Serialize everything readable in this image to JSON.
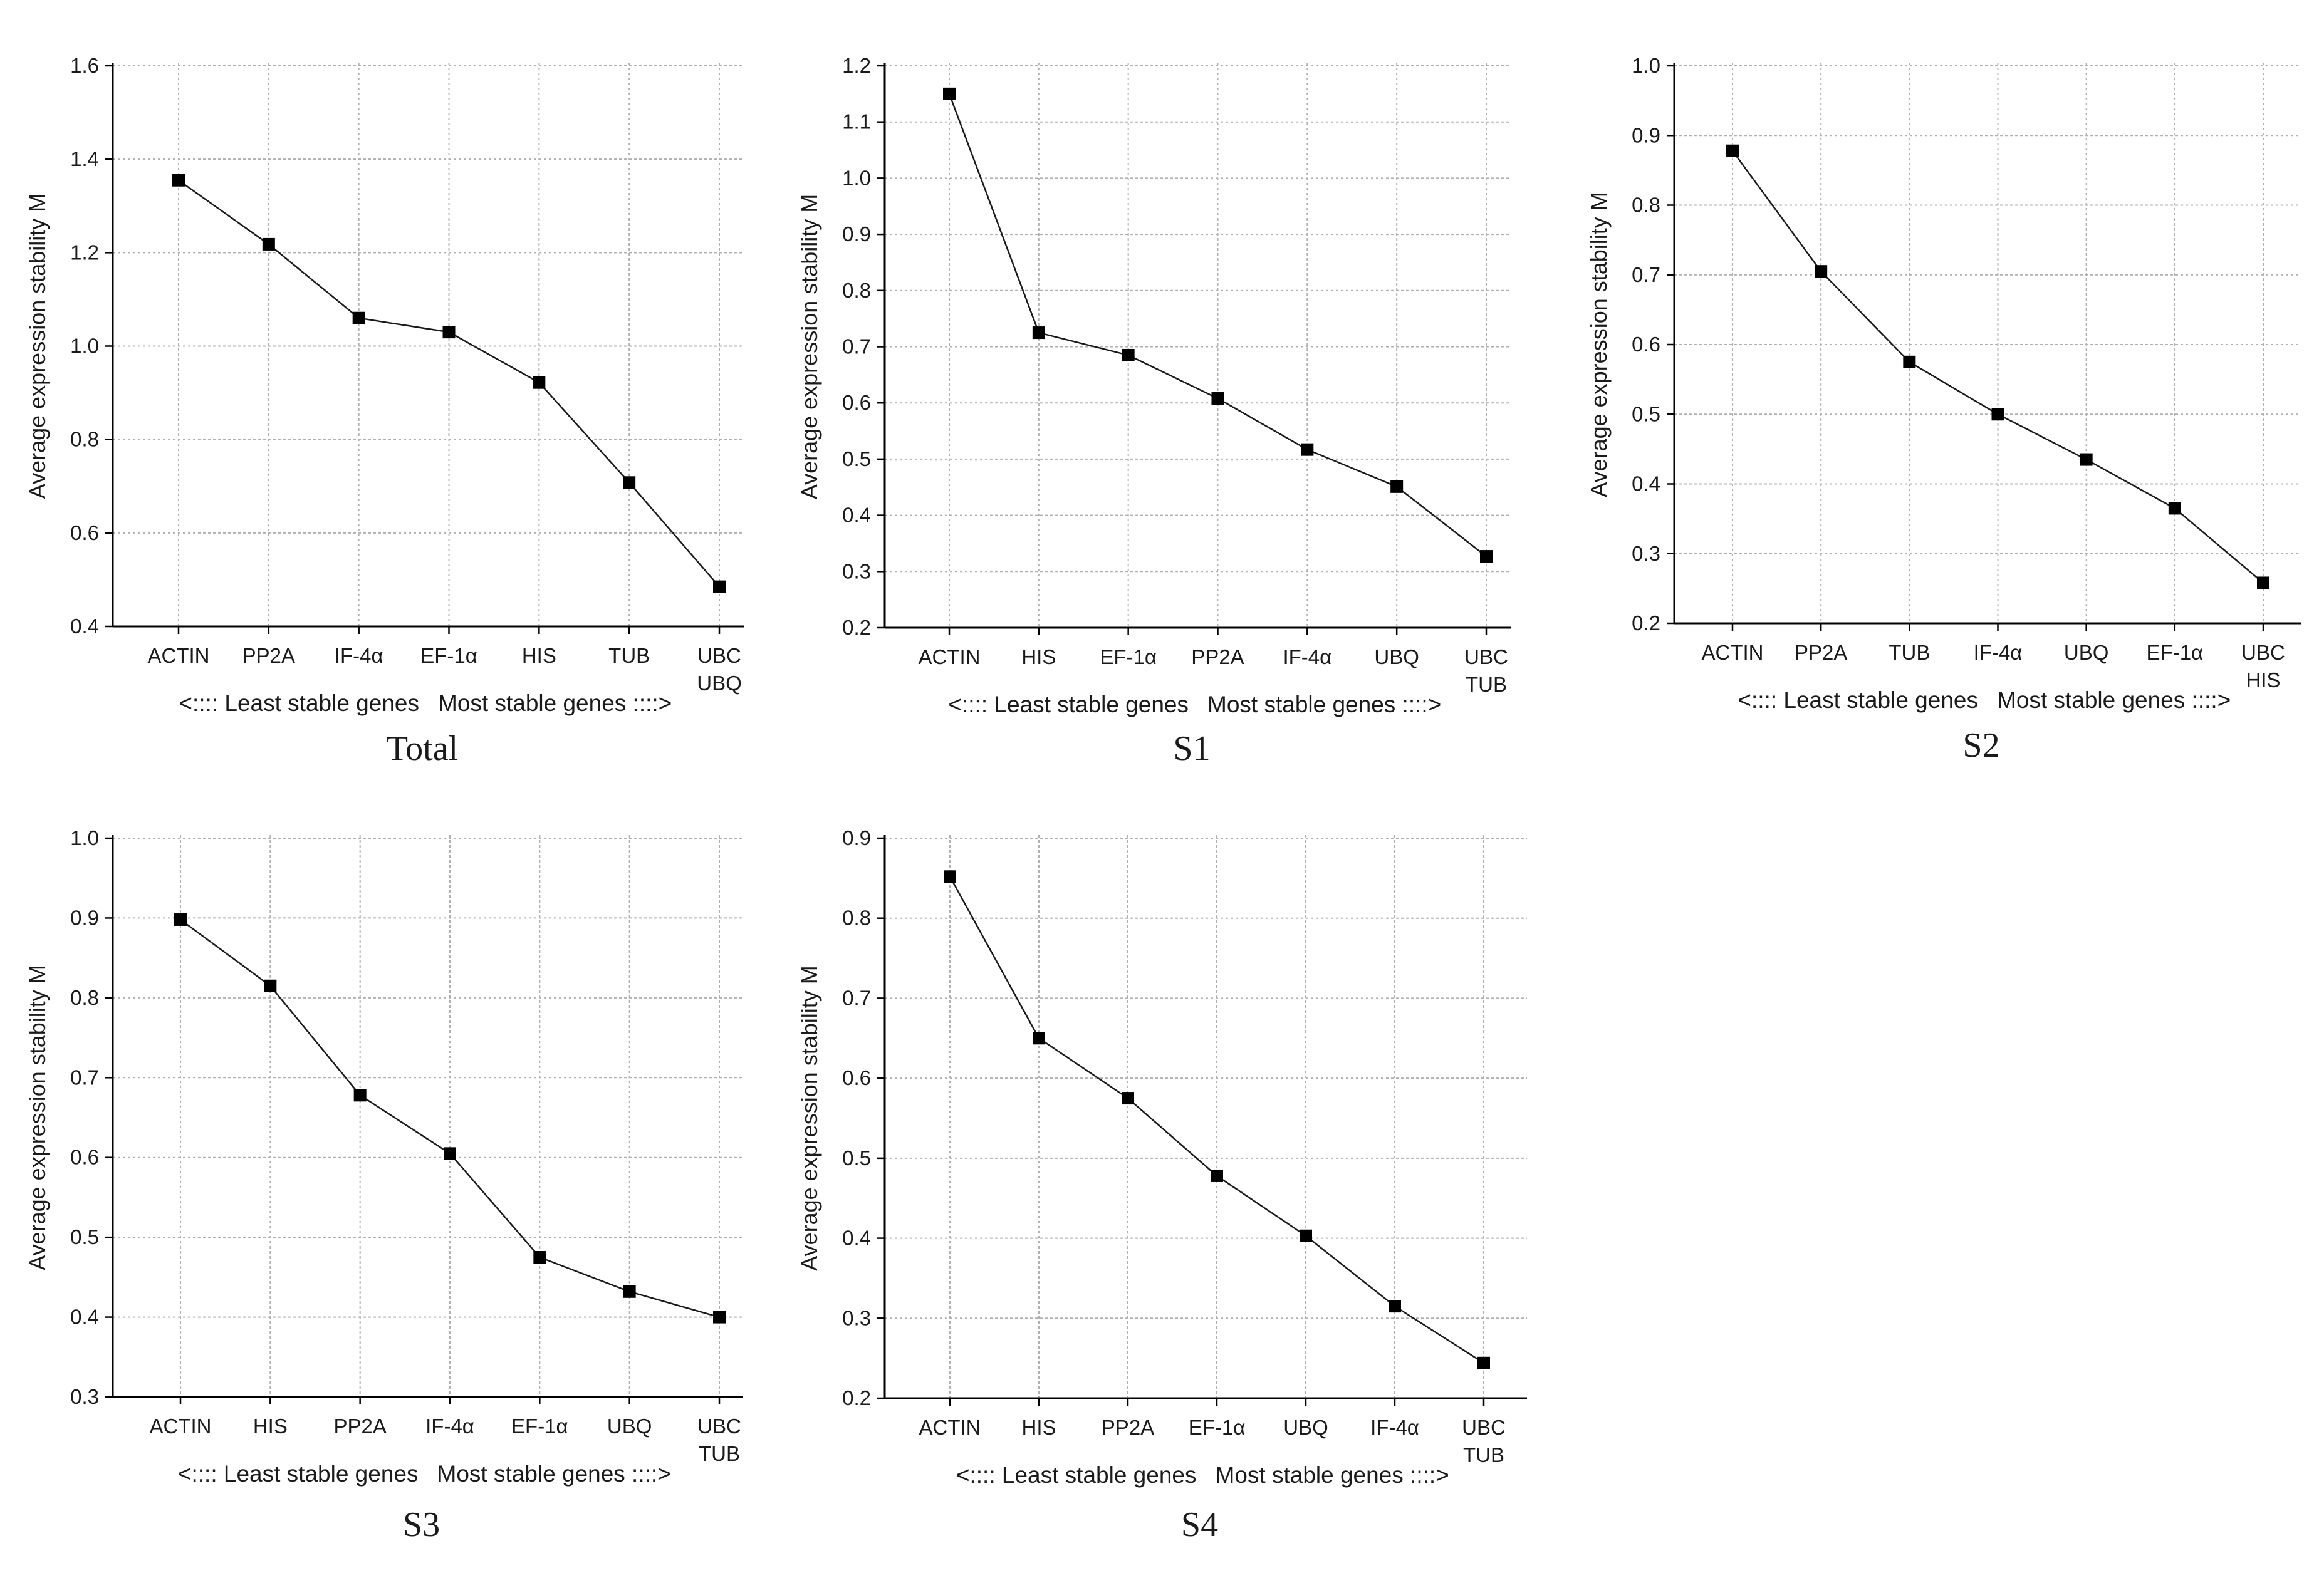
{
  "colors": {
    "line": "#1a1a1a",
    "grid": "#b0b0b0",
    "axis": "#000000",
    "marker": "#000000"
  },
  "chart_data": [
    {
      "type": "line",
      "caption": "Total",
      "ylabel": "Average expression stability M",
      "categories": [
        "ACTIN",
        "PP2A",
        "IF-4α",
        "EF-1α",
        "HIS",
        "TUB",
        "UBC\nUBQ"
      ],
      "values": [
        1.355,
        1.218,
        1.06,
        1.03,
        0.922,
        0.708,
        0.485
      ],
      "ylim": [
        0.4,
        1.6
      ],
      "yticks": [
        "0.4",
        "0.6",
        "0.8",
        "1.0",
        "1.2",
        "1.4",
        "1.6"
      ],
      "grid": true,
      "footer_left": "<:::: Least stable genes",
      "footer_right": "Most stable genes ::::>"
    },
    {
      "type": "line",
      "caption": "S1",
      "ylabel": "Average expression stability M",
      "categories": [
        "ACTIN",
        "HIS",
        "EF-1α",
        "PP2A",
        "IF-4α",
        "UBQ",
        "UBC\nTUB"
      ],
      "values": [
        1.15,
        0.725,
        0.685,
        0.608,
        0.517,
        0.451,
        0.327
      ],
      "ylim": [
        0.2,
        1.2
      ],
      "yticks": [
        "0.2",
        "0.3",
        "0.4",
        "0.5",
        "0.6",
        "0.7",
        "0.8",
        "0.9",
        "1.0",
        "1.1",
        "1.2"
      ],
      "grid": true,
      "footer_left": "<:::: Least stable genes",
      "footer_right": "Most stable genes ::::>"
    },
    {
      "type": "line",
      "caption": "S2",
      "ylabel": "Average expression stability M",
      "categories": [
        "ACTIN",
        "PP2A",
        "TUB",
        "IF-4α",
        "UBQ",
        "EF-1α",
        "UBC\nHIS"
      ],
      "values": [
        0.878,
        0.705,
        0.575,
        0.5,
        0.435,
        0.365,
        0.258
      ],
      "ylim": [
        0.2,
        1.0
      ],
      "yticks": [
        "0.2",
        "0.3",
        "0.4",
        "0.5",
        "0.6",
        "0.7",
        "0.8",
        "0.9",
        "1.0"
      ],
      "grid": true,
      "footer_left": "<:::: Least stable genes",
      "footer_right": "Most stable genes ::::>"
    },
    {
      "type": "line",
      "caption": "S3",
      "ylabel": "Average expression stability M",
      "categories": [
        "ACTIN",
        "HIS",
        "PP2A",
        "IF-4α",
        "EF-1α",
        "UBQ",
        "UBC\nTUB"
      ],
      "values": [
        0.898,
        0.815,
        0.678,
        0.605,
        0.475,
        0.432,
        0.4
      ],
      "ylim": [
        0.3,
        1.0
      ],
      "yticks": [
        "0.3",
        "0.4",
        "0.5",
        "0.6",
        "0.7",
        "0.8",
        "0.9",
        "1.0"
      ],
      "grid": true,
      "footer_left": "<:::: Least stable genes",
      "footer_right": "Most stable genes ::::>"
    },
    {
      "type": "line",
      "caption": "S4",
      "ylabel": "Average expression stability M",
      "categories": [
        "ACTIN",
        "HIS",
        "PP2A",
        "EF-1α",
        "UBQ",
        "IF-4α",
        "UBC\nTUB"
      ],
      "values": [
        0.852,
        0.65,
        0.575,
        0.478,
        0.403,
        0.315,
        0.244
      ],
      "ylim": [
        0.2,
        0.9
      ],
      "yticks": [
        "0.2",
        "0.3",
        "0.4",
        "0.5",
        "0.6",
        "0.7",
        "0.8",
        "0.9"
      ],
      "grid": true,
      "footer_left": "<:::: Least stable genes",
      "footer_right": "Most stable genes ::::>"
    }
  ]
}
